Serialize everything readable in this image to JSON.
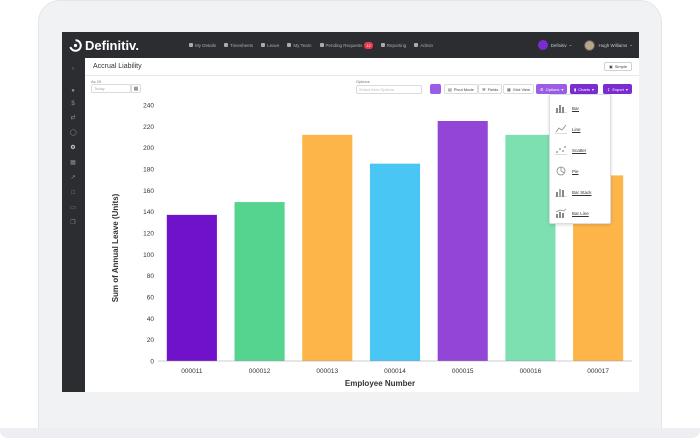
{
  "app": {
    "brand": "Definitiv.",
    "page_title": "Accrual Liability"
  },
  "nav": {
    "items": [
      {
        "label": "My Details",
        "icon": "person-icon"
      },
      {
        "label": "Timesheets",
        "icon": "timesheet-icon"
      },
      {
        "label": "Leave",
        "icon": "clock-icon"
      },
      {
        "label": "My Team",
        "icon": "team-icon"
      },
      {
        "label": "Pending Requests",
        "icon": "inbox-icon",
        "badge": "12"
      },
      {
        "label": "Reporting",
        "icon": "report-icon"
      },
      {
        "label": "Admin",
        "icon": "gear-icon"
      }
    ],
    "tenant": "Definitiv",
    "user": "Hugh Williams"
  },
  "header": {
    "simple_label": "Simple"
  },
  "filters": {
    "as_of_label": "As Of",
    "as_of_placeholder": "Today",
    "options_label": "Options",
    "options_placeholder": "Select Item Options"
  },
  "toolbar": {
    "pivot_label": "Pivot Mode",
    "fields_label": "Fields",
    "grid_label": "Grid View",
    "options_label": "Options",
    "charts_label": "Charts",
    "export_label": "Export"
  },
  "charts_menu": {
    "items": [
      {
        "label": "Bar",
        "icon": "bar-chart-icon"
      },
      {
        "label": "Line",
        "icon": "line-chart-icon"
      },
      {
        "label": "Scatter",
        "icon": "scatter-chart-icon"
      },
      {
        "label": "Pie",
        "icon": "pie-chart-icon"
      },
      {
        "label": "Bar Stack",
        "icon": "bar-stack-icon"
      },
      {
        "label": "Bar Line",
        "icon": "bar-line-icon"
      }
    ]
  },
  "chart_data": {
    "type": "bar",
    "categories": [
      "000011",
      "000012",
      "000013",
      "000014",
      "000015",
      "000016",
      "000017"
    ],
    "values": [
      137,
      149,
      212,
      185,
      225,
      212,
      174
    ],
    "colors": [
      "#6f12c9",
      "#55d48f",
      "#fdb54a",
      "#4ac6f4",
      "#9245d6",
      "#7ce0b0",
      "#fdb54a"
    ],
    "xlabel": "Employee Number",
    "ylabel": "Sum of Annual Leave (Units)",
    "ylim": [
      0,
      240
    ],
    "yticks": [
      0,
      20,
      40,
      60,
      80,
      100,
      120,
      140,
      160,
      180,
      200,
      220,
      240
    ],
    "grid": false,
    "legend": "none"
  }
}
